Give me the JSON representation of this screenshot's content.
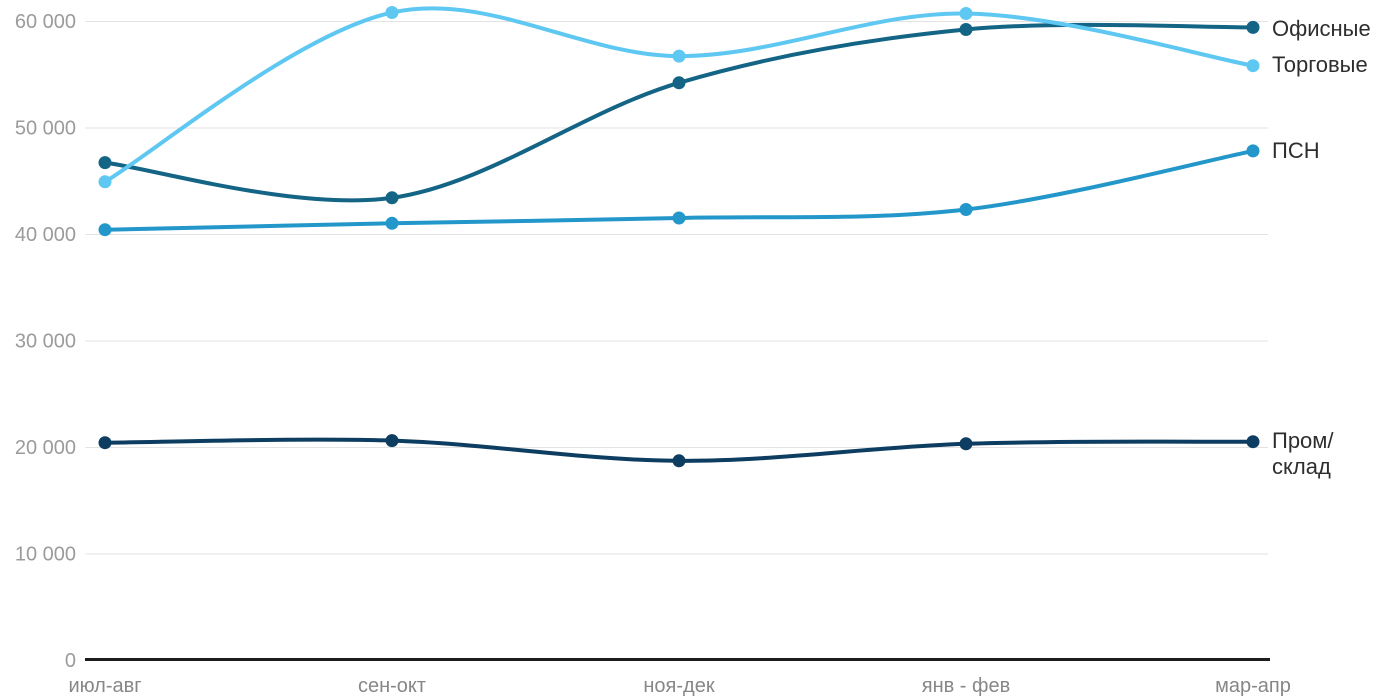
{
  "chart_data": {
    "type": "line",
    "title": "",
    "xlabel": "",
    "ylabel": "",
    "categories": [
      "июл-авг",
      "сен-окт",
      "ноя-дек",
      "янв - фев",
      "мар-апр"
    ],
    "series": [
      {
        "name": "Офисные",
        "color": "#136485",
        "values": [
          46700,
          43400,
          54200,
          59200,
          59400
        ]
      },
      {
        "name": "Торговые",
        "color": "#5ec8f2",
        "values": [
          44900,
          60800,
          56700,
          60700,
          55800
        ]
      },
      {
        "name": "ПСН",
        "color": "#2397c9",
        "values": [
          40400,
          41000,
          41500,
          42300,
          47800
        ]
      },
      {
        "name": "Пром/склад",
        "color": "#0d3d61",
        "values": [
          20400,
          20600,
          18700,
          20300,
          20500
        ]
      }
    ],
    "ylim": [
      0,
      62000
    ],
    "yticks": [
      0,
      10000,
      20000,
      30000,
      40000,
      50000,
      60000
    ],
    "ytick_labels": [
      "0",
      "10 000",
      "20 000",
      "30 000",
      "40 000",
      "50 000",
      "60 000"
    ],
    "grid": true,
    "line_smoothing": "spline",
    "markers": true,
    "legend_position": "right-at-line-end"
  },
  "style": {
    "gridline_color": "#e3e3e3",
    "axis_line_color": "#1d1d1d",
    "ytick_label_color": "#9b9b9b",
    "xtick_label_color": "#878787",
    "legend_text_color": "#2e2e2e",
    "background_color": "#ffffff"
  },
  "legend": {
    "ofisnye": "Офисные",
    "torgovye": "Торговые",
    "psn": "ПСН",
    "prom": "Пром/склад"
  }
}
